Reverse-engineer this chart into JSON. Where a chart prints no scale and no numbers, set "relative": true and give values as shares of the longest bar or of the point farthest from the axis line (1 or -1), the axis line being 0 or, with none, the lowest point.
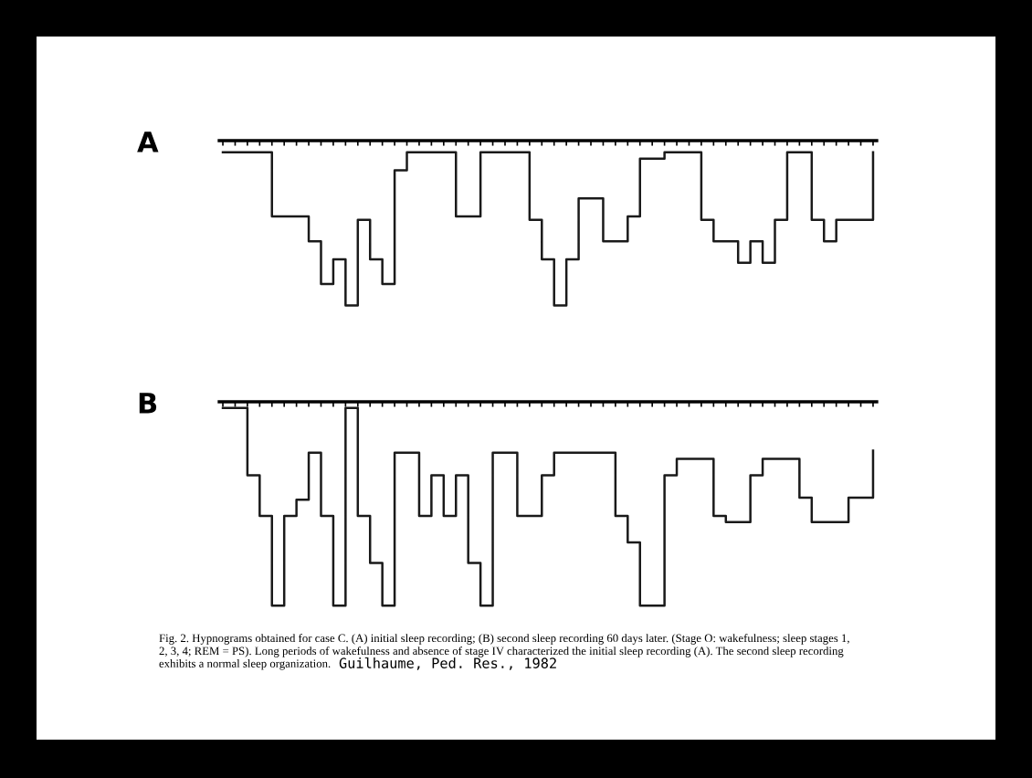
{
  "chart_data": [
    {
      "type": "step",
      "title": "A",
      "relative": true,
      "grid": false,
      "legend": false,
      "line_style": "solid",
      "marker": "none",
      "categories": [
        null,
        null,
        null,
        null,
        null,
        null,
        null,
        null,
        null,
        null,
        null,
        null,
        null,
        null,
        null,
        null,
        null,
        null,
        null,
        null,
        null,
        null,
        null,
        null,
        null,
        null,
        null,
        null,
        null,
        null,
        null,
        null,
        null,
        null,
        null,
        null,
        null,
        null,
        null,
        null,
        null,
        null,
        null,
        null,
        null,
        null,
        null,
        null,
        null,
        null,
        null,
        null,
        null,
        null
      ],
      "series": [
        {
          "color": "#1a1a1a",
          "values": [
            -0.07,
            -0.07,
            -0.07,
            -0.07,
            -0.46,
            -0.46,
            -0.46,
            -0.61,
            -0.87,
            -0.72,
            -1,
            -0.48,
            -0.72,
            -0.87,
            -0.18,
            -0.07,
            -0.07,
            -0.07,
            -0.07,
            -0.46,
            -0.46,
            -0.07,
            -0.07,
            -0.07,
            -0.07,
            -0.48,
            -0.72,
            -1,
            -0.72,
            -0.35,
            -0.35,
            -0.61,
            -0.61,
            -0.46,
            -0.11,
            -0.11,
            -0.07,
            -0.07,
            -0.07,
            -0.48,
            -0.61,
            -0.61,
            -0.74,
            -0.61,
            -0.74,
            -0.48,
            -0.07,
            -0.07,
            -0.48,
            -0.61,
            -0.48,
            -0.48,
            -0.48,
            -0.07
          ]
        }
      ]
    },
    {
      "type": "step",
      "title": "B",
      "relative": true,
      "grid": false,
      "legend": false,
      "line_style": "solid",
      "marker": "none",
      "categories": [
        null,
        null,
        null,
        null,
        null,
        null,
        null,
        null,
        null,
        null,
        null,
        null,
        null,
        null,
        null,
        null,
        null,
        null,
        null,
        null,
        null,
        null,
        null,
        null,
        null,
        null,
        null,
        null,
        null,
        null,
        null,
        null,
        null,
        null,
        null,
        null,
        null,
        null,
        null,
        null,
        null,
        null,
        null,
        null,
        null,
        null,
        null,
        null,
        null,
        null,
        null,
        null,
        null,
        null
      ],
      "series": [
        {
          "color": "#1a1a1a",
          "values": [
            -0.03,
            -0.03,
            -0.36,
            -0.56,
            -1,
            -0.56,
            -0.48,
            -0.25,
            -0.56,
            -1,
            -0.03,
            -0.56,
            -0.79,
            -1,
            -0.25,
            -0.25,
            -0.56,
            -0.36,
            -0.56,
            -0.36,
            -0.79,
            -1,
            -0.25,
            -0.25,
            -0.56,
            -0.56,
            -0.36,
            -0.25,
            -0.25,
            -0.25,
            -0.25,
            -0.25,
            -0.56,
            -0.69,
            -1,
            -1,
            -0.36,
            -0.28,
            -0.28,
            -0.28,
            -0.56,
            -0.59,
            -0.59,
            -0.36,
            -0.28,
            -0.28,
            -0.28,
            -0.47,
            -0.59,
            -0.59,
            -0.59,
            -0.47,
            -0.47,
            -0.24
          ]
        }
      ],
      "annotations": [
        "Fig. 2. Hypnograms obtained for case C. (A) initial sleep recording; (B) second sleep recording 60 days later. (Stage O: wakefulness; sleep stages 1,",
        "2, 3, 4; REM = PS). Long periods of wakefulness and absence of stage IV characterized the initial sleep recording (A). The second sleep recording",
        "exhibits a normal sleep organization.",
        "Guilhaume, Ped. Res., 1982"
      ]
    }
  ]
}
